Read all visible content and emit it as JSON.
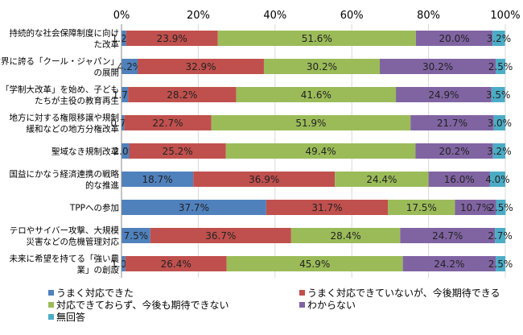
{
  "chart_data": {
    "type": "bar",
    "orientation": "horizontal",
    "stacked": true,
    "xlim": [
      0,
      100
    ],
    "x_ticks": [
      "0%",
      "20%",
      "40%",
      "60%",
      "80%",
      "100%"
    ],
    "grid": true,
    "legend_position": "bottom",
    "categories": [
      [
        "持続的な社会保障制度に向け",
        "た改革"
      ],
      [
        "世界に誇る「クール・ジャパン」",
        "の展開"
      ],
      [
        "「学制大改革」を始め、子ども",
        "たちが主役の教育再生"
      ],
      [
        "地方に対する権限移譲や規制",
        "緩和などの地方分権改革"
      ],
      [
        "聖域なき規制改革"
      ],
      [
        "国益にかなう経済連携の戦略",
        "的な推進"
      ],
      [
        "TPPへの参加"
      ],
      [
        "テロやサイバー攻撃、大規模",
        "災害などの危機管理対応"
      ],
      [
        "未来に希望を持てる「強い農",
        "業」の創設"
      ]
    ],
    "series": [
      {
        "name": "うまく対応できた",
        "color": "#4F81BD",
        "values": [
          1.2,
          4.2,
          1.7,
          0.7,
          2.0,
          18.7,
          37.7,
          7.5,
          1.0
        ]
      },
      {
        "name": "うまく対応できていないが、今後期待できる",
        "color": "#C0504D",
        "values": [
          23.9,
          32.9,
          28.2,
          22.7,
          25.2,
          36.9,
          31.7,
          36.7,
          26.4
        ]
      },
      {
        "name": "対応できておらず、今後も期待できない",
        "color": "#9BBB59",
        "values": [
          51.6,
          30.2,
          41.6,
          51.9,
          49.4,
          24.4,
          17.5,
          28.4,
          45.9
        ]
      },
      {
        "name": "わからない",
        "color": "#8064A2",
        "values": [
          20.0,
          30.2,
          24.9,
          21.7,
          20.2,
          16.0,
          10.7,
          24.7,
          24.2
        ]
      },
      {
        "name": "無回答",
        "color": "#4BACC6",
        "values": [
          3.2,
          2.5,
          3.5,
          3.0,
          3.2,
          4.0,
          2.5,
          2.7,
          2.5
        ]
      }
    ]
  }
}
